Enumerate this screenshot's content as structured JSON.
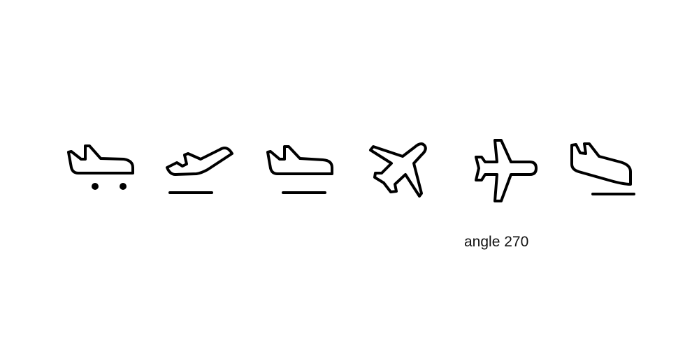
{
  "icons": [
    {
      "id": "icon-1",
      "name": "airplane-cargo-icon"
    },
    {
      "id": "icon-2",
      "name": "airplane-takeoff-icon"
    },
    {
      "id": "icon-3",
      "name": "airplane-ground-icon"
    },
    {
      "id": "icon-4",
      "name": "airplane-diagonal-icon"
    },
    {
      "id": "icon-5",
      "name": "airplane-angle-270-icon"
    },
    {
      "id": "icon-6",
      "name": "airplane-landing-icon"
    }
  ],
  "caption": "angle 270",
  "colors": {
    "stroke": "#000000",
    "background": "#ffffff"
  }
}
